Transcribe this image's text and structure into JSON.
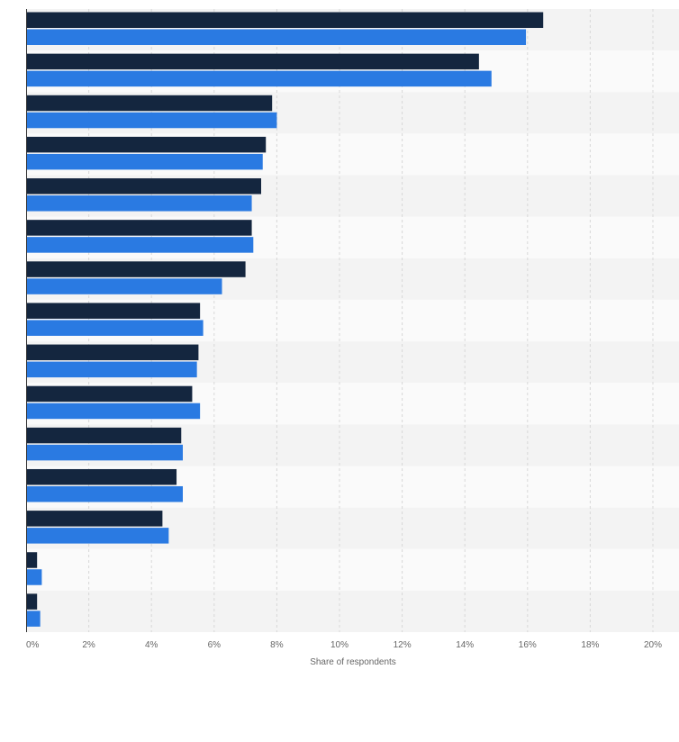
{
  "chart_data": {
    "type": "bar",
    "orientation": "horizontal",
    "categories": [
      "",
      "",
      "",
      "",
      "",
      "",
      "",
      "",
      "",
      "",
      "",
      "",
      "",
      "",
      ""
    ],
    "series": [
      {
        "values": [
          16.5,
          14.45,
          7.85,
          7.65,
          7.5,
          7.2,
          7.0,
          5.55,
          5.5,
          5.3,
          4.95,
          4.8,
          4.35,
          0.35,
          0.35
        ]
      },
      {
        "values": [
          15.95,
          14.85,
          8.0,
          7.55,
          7.2,
          7.25,
          6.25,
          5.65,
          5.45,
          5.55,
          5.0,
          5.0,
          4.55,
          0.5,
          0.45
        ]
      }
    ],
    "xlim": [
      0,
      20
    ],
    "xticks": [
      0,
      2,
      4,
      6,
      8,
      10,
      12,
      14,
      16,
      18,
      20
    ],
    "tick_format": "{v}%",
    "xlabel": "Share of respondents",
    "ylabel": "",
    "grid": true,
    "colors": {
      "series": [
        "#14263f",
        "#2a7ae2"
      ],
      "band_a": "#f3f3f3",
      "band_b": "#fafafa",
      "gridline": "#d8d8d8",
      "axis": "#333333",
      "tick_text": "#666666"
    }
  }
}
